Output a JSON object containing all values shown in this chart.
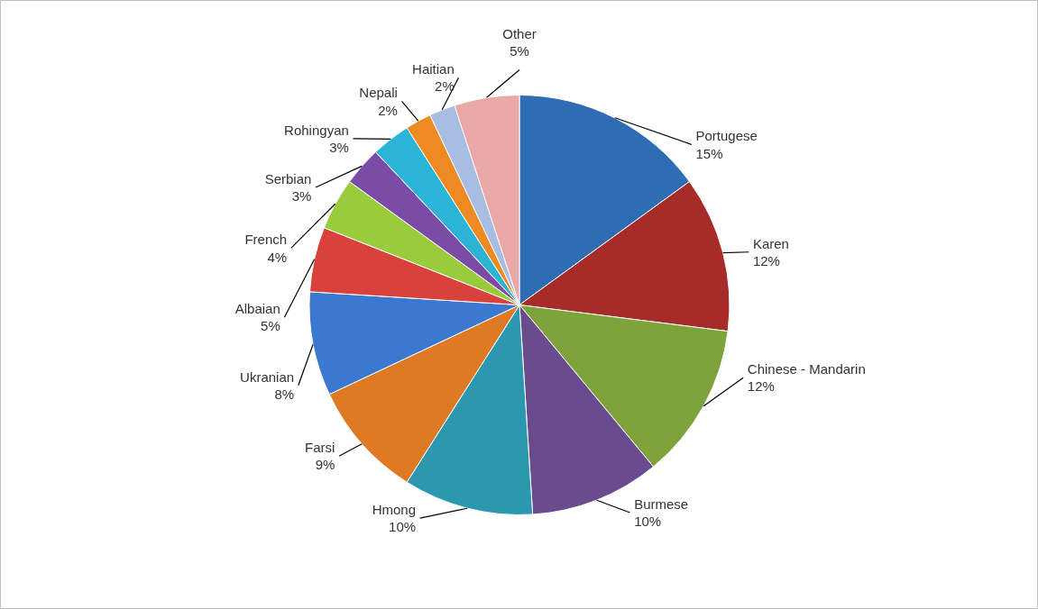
{
  "chart_data": {
    "type": "pie",
    "categories": [
      "Portugese",
      "Karen",
      "Chinese - Mandarin",
      "Burmese",
      "Hmong",
      "Farsi",
      "Ukranian",
      "Albaian",
      "French",
      "Serbian",
      "Rohingyan",
      "Nepali",
      "Haitian",
      "Other"
    ],
    "values": [
      15,
      12,
      12,
      10,
      10,
      9,
      8,
      5,
      4,
      3,
      3,
      2,
      2,
      5
    ],
    "value_labels": [
      "15%",
      "12%",
      "12%",
      "10%",
      "10%",
      "9%",
      "8%",
      "5%",
      "4%",
      "3%",
      "3%",
      "2%",
      "2%",
      "5%"
    ],
    "colors": [
      "#2e6cb3",
      "#a62c2a",
      "#7fa33b",
      "#6a4b8e",
      "#2c98b0",
      "#de7a24",
      "#3b78cf",
      "#d9423c",
      "#9acb3c",
      "#7b4ba6",
      "#2cb4d6",
      "#ee8a22",
      "#a9bde2",
      "#e8a9a8"
    ]
  }
}
